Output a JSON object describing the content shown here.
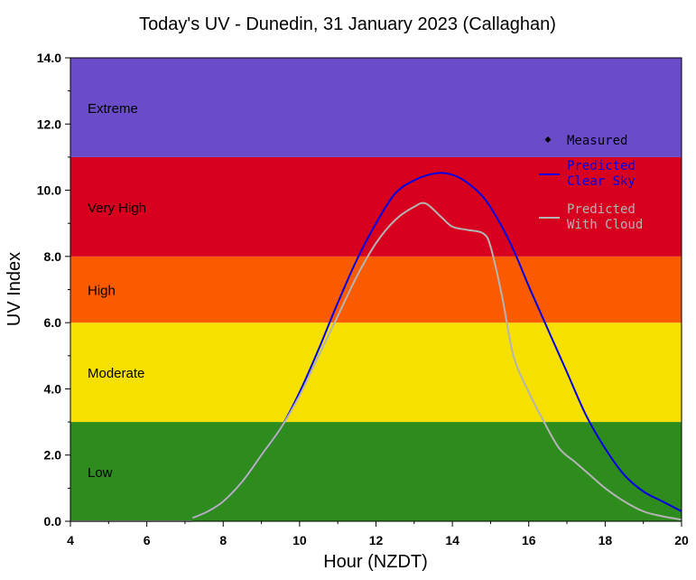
{
  "chart_data": {
    "type": "line",
    "title": "Today's UV - Dunedin, 31 January 2023 (Callaghan)",
    "xlabel": "Hour (NZDT)",
    "ylabel": "UV Index",
    "xlim": [
      4,
      20
    ],
    "ylim": [
      0,
      14
    ],
    "x_ticks": [
      4,
      6,
      8,
      10,
      12,
      14,
      16,
      18,
      20
    ],
    "y_ticks": [
      "0.0",
      "2.0",
      "4.0",
      "6.0",
      "8.0",
      "10.0",
      "12.0",
      "14.0"
    ],
    "grid": false,
    "bands": [
      {
        "label": "Low",
        "from": 0,
        "to": 3,
        "color": "#2e8b1e"
      },
      {
        "label": "Moderate",
        "from": 3,
        "to": 6,
        "color": "#f5e000"
      },
      {
        "label": "High",
        "from": 6,
        "to": 8,
        "color": "#fa5a00"
      },
      {
        "label": "Very High",
        "from": 8,
        "to": 11,
        "color": "#d7001e"
      },
      {
        "label": "Extreme",
        "from": 11,
        "to": 14,
        "color": "#6a4cc8"
      }
    ],
    "legend": {
      "placement": "top-right",
      "entries": [
        {
          "label_lines": [
            "Measured"
          ],
          "color": "#000000",
          "marker": "diamond"
        },
        {
          "label_lines": [
            "Predicted",
            "Clear Sky"
          ],
          "color": "#0000e6",
          "marker": "line"
        },
        {
          "label_lines": [
            "Predicted",
            "With Cloud"
          ],
          "color": "#b4b4b4",
          "marker": "line"
        }
      ]
    },
    "series": [
      {
        "name": "Predicted Clear Sky",
        "color": "#0000e6",
        "x": [
          7.2,
          7.6,
          8.0,
          8.5,
          9.0,
          9.5,
          10.0,
          10.5,
          11.0,
          11.5,
          12.0,
          12.5,
          13.0,
          13.5,
          13.9,
          14.3,
          14.8,
          15.2,
          15.6,
          16.0,
          16.5,
          17.0,
          17.5,
          18.0,
          18.5,
          19.0,
          19.5,
          20.0
        ],
        "y": [
          0.1,
          0.3,
          0.6,
          1.2,
          2.0,
          2.8,
          3.9,
          5.2,
          6.6,
          7.9,
          9.0,
          9.9,
          10.3,
          10.5,
          10.5,
          10.3,
          9.8,
          9.1,
          8.2,
          7.1,
          5.8,
          4.5,
          3.2,
          2.2,
          1.4,
          0.9,
          0.6,
          0.3
        ]
      },
      {
        "name": "Predicted With Cloud",
        "color": "#b4b4b4",
        "x": [
          7.2,
          7.6,
          8.0,
          8.5,
          9.0,
          9.5,
          10.0,
          10.5,
          11.0,
          11.5,
          12.0,
          12.5,
          13.0,
          13.3,
          13.7,
          14.0,
          14.4,
          14.8,
          15.0,
          15.3,
          15.6,
          16.0,
          16.4,
          16.8,
          17.2,
          17.6,
          18.0,
          18.5,
          19.0,
          19.5,
          20.0
        ],
        "y": [
          0.1,
          0.3,
          0.6,
          1.2,
          2.0,
          2.8,
          3.8,
          5.0,
          6.2,
          7.4,
          8.4,
          9.1,
          9.5,
          9.6,
          9.2,
          8.9,
          8.8,
          8.7,
          8.3,
          6.8,
          5.0,
          3.9,
          3.0,
          2.2,
          1.8,
          1.4,
          1.0,
          0.6,
          0.3,
          0.15,
          0.05
        ]
      }
    ]
  }
}
